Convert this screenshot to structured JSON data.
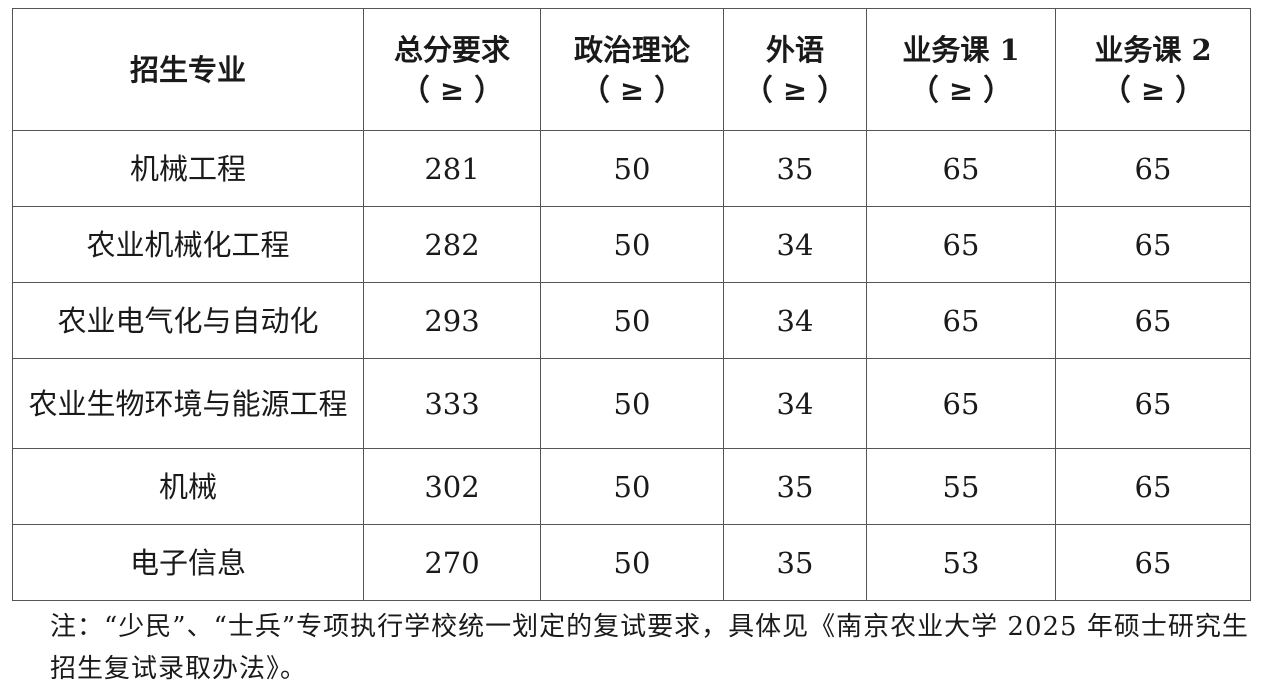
{
  "table": {
    "headers": [
      {
        "line1": "招生专业",
        "line2": ""
      },
      {
        "line1": "总分要求",
        "line2": "（ ≥ ）"
      },
      {
        "line1": "政治理论",
        "line2": "（ ≥ ）"
      },
      {
        "line1": "外语",
        "line2": "（ ≥ ）"
      },
      {
        "line1": "业务课 1",
        "line2": "（ ≥ ）"
      },
      {
        "line1": "业务课 2",
        "line2": "（ ≥ ）"
      }
    ],
    "rows": [
      [
        "机械工程",
        "281",
        "50",
        "35",
        "65",
        "65"
      ],
      [
        "农业机械化工程",
        "282",
        "50",
        "34",
        "65",
        "65"
      ],
      [
        "农业电气化与自动化",
        "293",
        "50",
        "34",
        "65",
        "65"
      ],
      [
        "农业生物环境与能源工程",
        "333",
        "50",
        "34",
        "65",
        "65"
      ],
      [
        "机械",
        "302",
        "50",
        "35",
        "55",
        "65"
      ],
      [
        "电子信息",
        "270",
        "50",
        "35",
        "53",
        "65"
      ]
    ]
  },
  "note": "注：“少民”、“士兵”专项执行学校统一划定的复试要求，具体见《南京农业大学 2025 年硕士研究生招生复试录取办法》。"
}
